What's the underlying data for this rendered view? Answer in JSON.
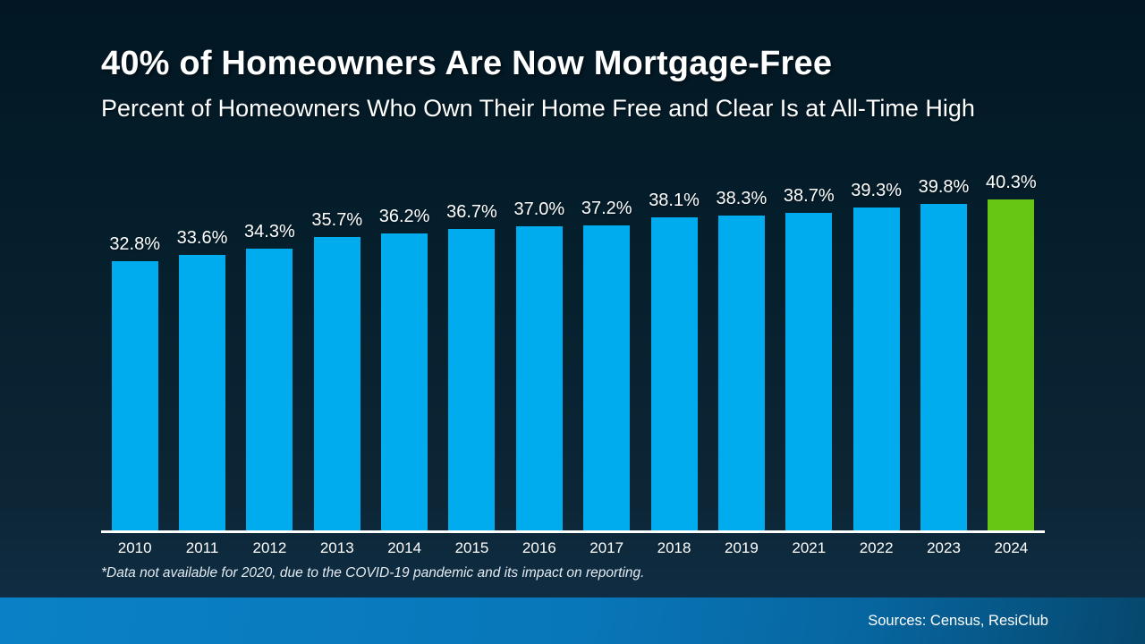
{
  "header": {
    "title": "40% of Homeowners Are Now Mortgage-Free",
    "subtitle": "Percent of Homeowners Who Own Their Home Free and Clear Is at All-Time High"
  },
  "footnote": "*Data not available for 2020, due to the COVID-19 pandemic and its impact on reporting.",
  "footer": {
    "sources": "Sources: Census, ResiClub"
  },
  "colors": {
    "bar": "#00aced",
    "bar_highlight": "#66c613",
    "axis": "#ffffff",
    "background_top": "#021723",
    "background_bottom": "#113049",
    "footer_left": "#0a81c6",
    "footer_right": "#06486e"
  },
  "chart_data": {
    "type": "bar",
    "title": "40% of Homeowners Are Now Mortgage-Free",
    "subtitle": "Percent of Homeowners Who Own Their Home Free and Clear Is at All-Time High",
    "categories": [
      "2010",
      "2011",
      "2012",
      "2013",
      "2014",
      "2015",
      "2016",
      "2017",
      "2018",
      "2019",
      "2021",
      "2022",
      "2023",
      "2024"
    ],
    "values": [
      32.8,
      33.6,
      34.3,
      35.7,
      36.2,
      36.7,
      37.0,
      37.2,
      38.1,
      38.3,
      38.7,
      39.3,
      39.8,
      40.3
    ],
    "value_labels": [
      "32.8%",
      "33.6%",
      "34.3%",
      "35.7%",
      "36.2%",
      "36.7%",
      "37.0%",
      "37.2%",
      "38.1%",
      "38.3%",
      "38.7%",
      "39.3%",
      "39.8%",
      "40.3%"
    ],
    "highlight_category": "2024",
    "xlabel": "",
    "ylabel": "",
    "ylim": [
      0,
      40.3
    ],
    "grid": false,
    "legend": false,
    "value_labels_shown": true,
    "missing_data_note": "2020 not reported"
  }
}
